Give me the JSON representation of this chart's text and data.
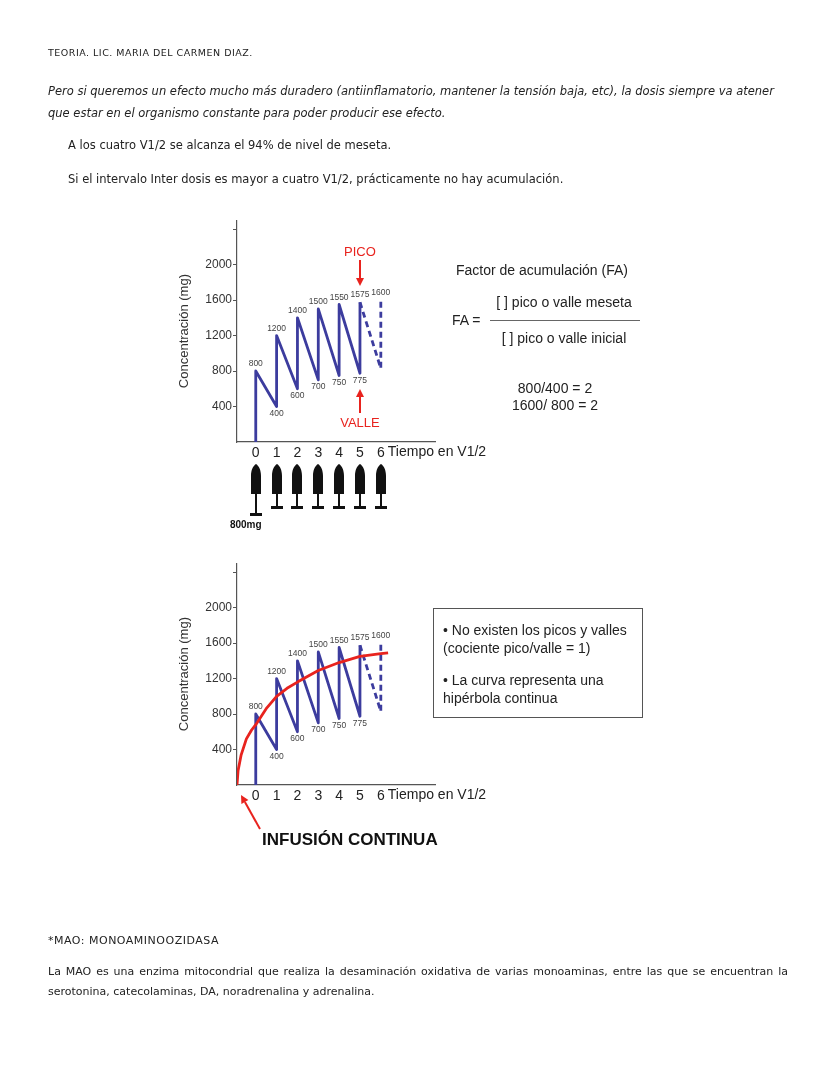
{
  "chart_data": [
    {
      "type": "line",
      "xlabel": "Tiempo en V1/2",
      "ylabel": "Concentración (mg)",
      "xlim": [
        -0.9,
        8.6
      ],
      "xticks": [
        0,
        1,
        2,
        3,
        4,
        5,
        6
      ],
      "ylim": [
        0,
        2500
      ],
      "yticks": [
        400,
        800,
        1200,
        1600,
        2000,
        {
          "value": 2400,
          "label": null
        }
      ],
      "series": [
        {
          "color": "#3c3c9e",
          "x": [
            0,
            0,
            1,
            1,
            2,
            2,
            3,
            3,
            4,
            4,
            5,
            5
          ],
          "values": [
            0,
            800,
            400,
            1200,
            600,
            1400,
            700,
            1500,
            750,
            1550,
            775,
            1575
          ],
          "value_labels": [
            null,
            "800",
            "400",
            "1200",
            "600",
            "1400",
            "700",
            "1500",
            "750",
            "1550",
            "775",
            "1575"
          ]
        },
        {
          "color": "#3c3c9e",
          "line_style": "dashed",
          "x": [
            5,
            6,
            6
          ],
          "values": [
            1575,
            830,
            1600
          ],
          "value_labels": [
            null,
            null,
            "1600"
          ]
        }
      ],
      "annotations": [
        "TEORIA. LIC. MARIA DEL CARMEN DIAZ.",
        "Pero si queremos un efecto mucho más duradero (antiinflamatorio, mantener la tensión baja, etc), la dosis siempre va atener que estar en el organismo constante para poder producir ese efecto.",
        "A los cuatro V1/2 se alcanza el 94% de nivel de meseta.",
        "Si el intervalo Inter dosis es mayor a cuatro V1/2, prácticamente no hay acumulación.",
        "Factor de acumulación (FA)",
        "FA =",
        "[ ] pico o valle meseta",
        "[ ] pico o valle inicial",
        "800/400 = 2",
        "1600/ 800 = 2",
        "800mg",
        "PICO",
        "VALLE"
      ]
    },
    {
      "type": "line",
      "xlabel": "Tiempo en V1/2",
      "ylabel": "Concentración (mg)",
      "xlim": [
        -0.9,
        8.6
      ],
      "xticks": [
        0,
        1,
        2,
        3,
        4,
        5,
        6
      ],
      "ylim": [
        0,
        2500
      ],
      "yticks": [
        400,
        800,
        1200,
        1600,
        2000,
        {
          "value": 2400,
          "label": null
        }
      ],
      "series": [
        {
          "color": "#3c3c9e",
          "x": [
            0,
            0,
            1,
            1,
            2,
            2,
            3,
            3,
            4,
            4,
            5,
            5
          ],
          "values": [
            0,
            800,
            400,
            1200,
            600,
            1400,
            700,
            1500,
            750,
            1550,
            775,
            1575
          ],
          "value_labels": [
            null,
            "800",
            "400",
            "1200",
            "600",
            "1400",
            "700",
            "1500",
            "750",
            "1550",
            "775",
            "1575"
          ]
        },
        {
          "color": "#3c3c9e",
          "line_style": "dashed",
          "x": [
            5,
            6,
            6
          ],
          "values": [
            1575,
            830,
            1600
          ],
          "value_labels": [
            null,
            null,
            "1600"
          ]
        },
        {
          "color": "#e8231e",
          "x": [
            -0.9,
            -0.85,
            -0.7,
            -0.45,
            -0.2,
            0,
            0.5,
            1,
            1.5,
            2,
            3,
            4,
            5,
            6,
            6.35
          ],
          "values": [
            0,
            160,
            340,
            520,
            620,
            680,
            860,
            1000,
            1090,
            1160,
            1290,
            1380,
            1450,
            1480,
            1490
          ]
        }
      ],
      "annotations": [
        "• No existen los picos y valles (cociente pico/valle = 1)",
        "• La curva representa una hipérbola continua",
        "INFUSIÓN CONTINUA",
        "*MAO: MONOAMINOOZIDASA",
        "La MAO es una enzima mitocondrial que realiza la desaminación oxidativa de varias monoaminas, entre las que se encuentran la serotonina, catecolaminas, DA, noradrenalina y adrenalina."
      ]
    }
  ]
}
